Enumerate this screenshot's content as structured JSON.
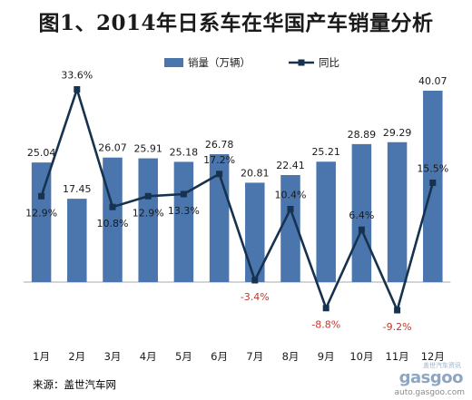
{
  "title": "图1、2014年日系车在华国产车销量分析",
  "source": "来源：盖世汽车网",
  "watermark": {
    "logo_small": "盖世汽车资讯",
    "logo": "gasgoo",
    "url": "auto.gasgoo.com"
  },
  "colors": {
    "bar": "#4a76ad",
    "line": "#16324f",
    "negative_label": "#c0392b"
  },
  "chart_data": {
    "type": "bar+line",
    "categories": [
      "1月",
      "2月",
      "3月",
      "4月",
      "5月",
      "6月",
      "7月",
      "8月",
      "9月",
      "10月",
      "11月",
      "12月"
    ],
    "series": [
      {
        "name": "销量（万辆）",
        "type": "bar",
        "axis": "left",
        "values": [
          25.04,
          17.45,
          26.07,
          25.91,
          25.18,
          26.78,
          20.81,
          22.41,
          25.21,
          28.89,
          29.29,
          40.07
        ],
        "labels": [
          "25.04",
          "17.45",
          "26.07",
          "25.91",
          "25.18",
          "26.78",
          "20.81",
          "22.41",
          "25.21",
          "28.89",
          "29.29",
          "40.07"
        ]
      },
      {
        "name": "同比",
        "type": "line",
        "axis": "right",
        "values": [
          12.9,
          33.6,
          10.8,
          12.9,
          13.3,
          17.2,
          -3.4,
          10.4,
          -8.8,
          6.4,
          -9.2,
          15.5
        ],
        "labels": [
          "12.9%",
          "33.6%",
          "10.8%",
          "12.9%",
          "13.3%",
          "17.2%",
          "-3.4%",
          "10.4%",
          "-8.8%",
          "6.4%",
          "-9.2%",
          "15.5%"
        ]
      }
    ],
    "legend_position": "top",
    "grid": false
  }
}
